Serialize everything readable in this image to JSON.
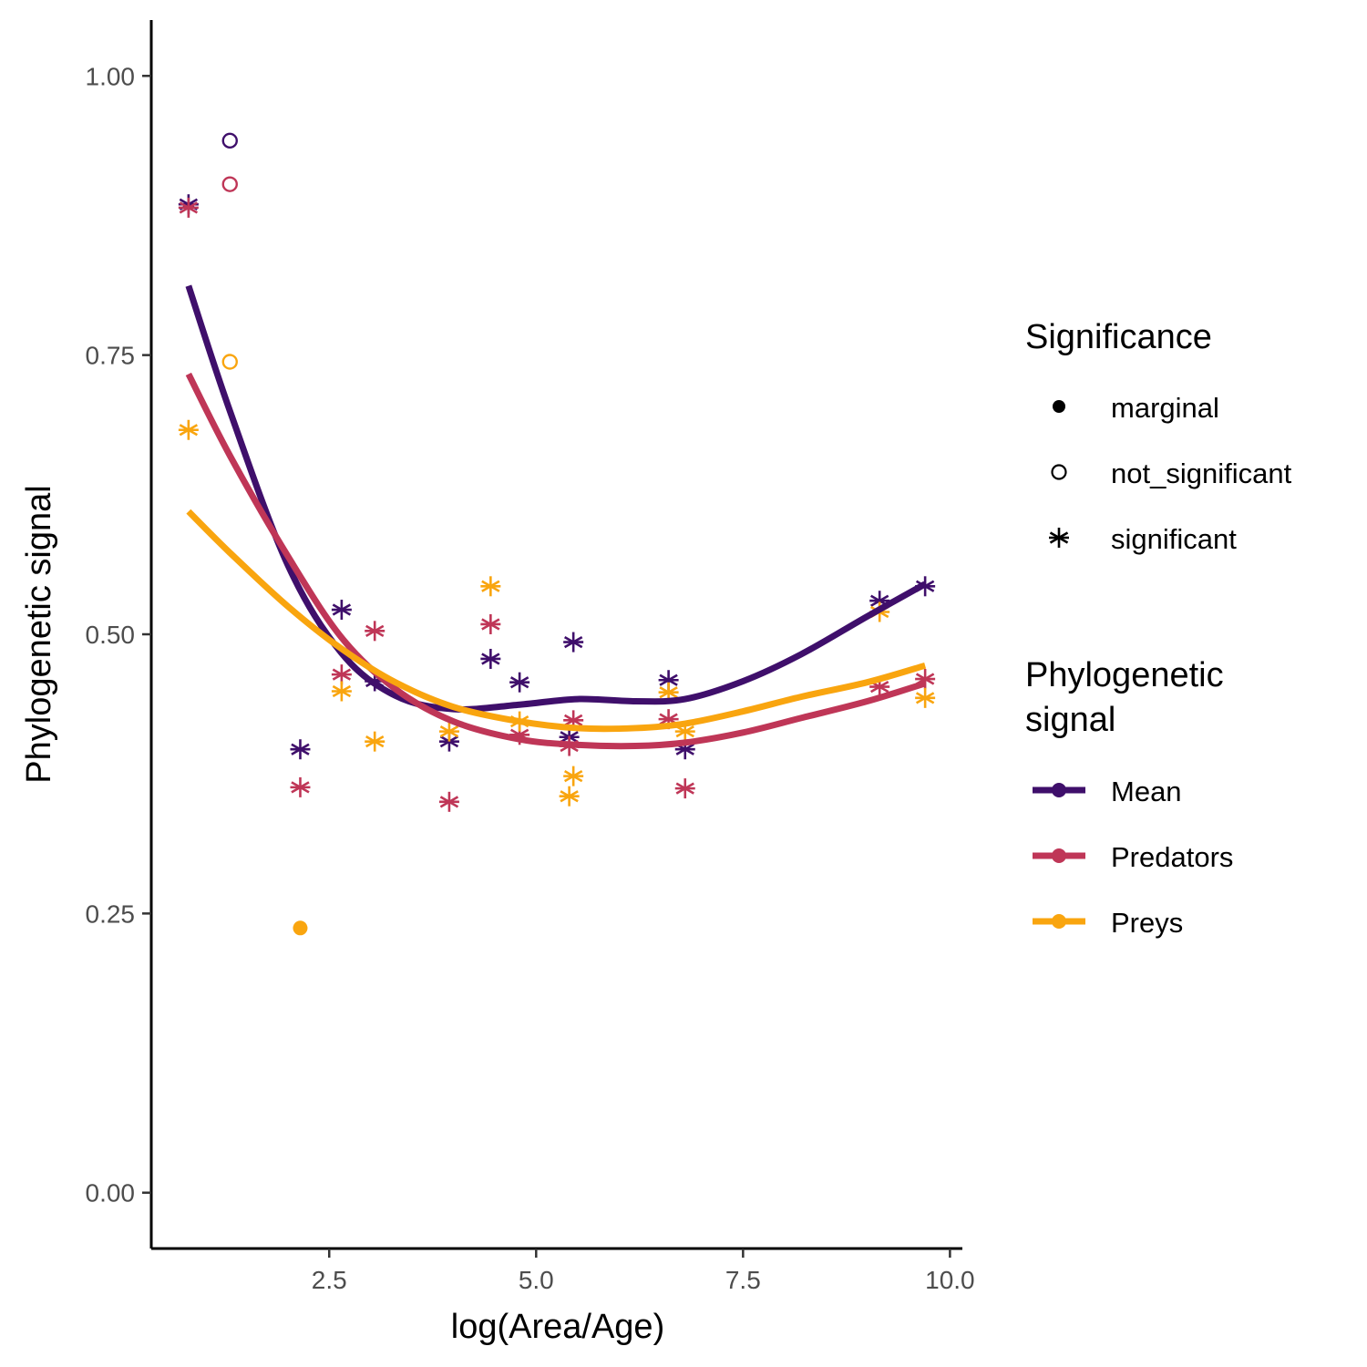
{
  "chart_data": {
    "type": "scatter",
    "xlabel": "log(Area/Age)",
    "ylabel": "Phylogenetic signal",
    "xlim": [
      0.35,
      10.15
    ],
    "ylim": [
      -0.05,
      1.05
    ],
    "x_ticks": [
      2.5,
      5.0,
      7.5,
      10.0
    ],
    "x_tick_labels": [
      "2.5",
      "5.0",
      "7.5",
      "10.0"
    ],
    "y_ticks": [
      0.0,
      0.25,
      0.5,
      0.75,
      1.0
    ],
    "y_tick_labels": [
      "0.00",
      "0.25",
      "0.50",
      "0.75",
      "1.00"
    ],
    "grid": false,
    "legend_placement": "right",
    "legends": [
      {
        "title": "Significance",
        "entries": [
          {
            "label": "marginal",
            "shape": "filled-circle"
          },
          {
            "label": "not_significant",
            "shape": "open-circle"
          },
          {
            "label": "significant",
            "shape": "asterisk"
          }
        ]
      },
      {
        "title": "Phylogenetic signal",
        "entries": [
          {
            "label": "Mean",
            "color": "#3f0f6b"
          },
          {
            "label": "Predators",
            "color": "#bf3657"
          },
          {
            "label": "Preys",
            "color": "#f9a50f"
          }
        ]
      }
    ],
    "series": [
      {
        "name": "Mean",
        "color": "#3f0f6b",
        "points": [
          {
            "x": 0.8,
            "y": 0.885,
            "sig": "significant"
          },
          {
            "x": 1.3,
            "y": 0.942,
            "sig": "not_significant"
          },
          {
            "x": 2.15,
            "y": 0.397,
            "sig": "significant"
          },
          {
            "x": 2.65,
            "y": 0.522,
            "sig": "significant"
          },
          {
            "x": 3.05,
            "y": 0.458,
            "sig": "significant"
          },
          {
            "x": 3.95,
            "y": 0.404,
            "sig": "significant"
          },
          {
            "x": 4.45,
            "y": 0.478,
            "sig": "significant"
          },
          {
            "x": 4.8,
            "y": 0.457,
            "sig": "significant"
          },
          {
            "x": 5.4,
            "y": 0.408,
            "sig": "significant"
          },
          {
            "x": 5.45,
            "y": 0.493,
            "sig": "significant"
          },
          {
            "x": 6.6,
            "y": 0.459,
            "sig": "significant"
          },
          {
            "x": 6.8,
            "y": 0.397,
            "sig": "significant"
          },
          {
            "x": 9.15,
            "y": 0.53,
            "sig": "significant"
          },
          {
            "x": 9.7,
            "y": 0.543,
            "sig": "significant"
          }
        ],
        "smooth": {
          "x": [
            0.8,
            1.3,
            2.0,
            2.65,
            3.3,
            4.0,
            4.8,
            5.5,
            6.2,
            6.8,
            7.5,
            8.2,
            9.0,
            9.7
          ],
          "y": [
            0.812,
            0.7,
            0.562,
            0.483,
            0.445,
            0.433,
            0.437,
            0.442,
            0.44,
            0.442,
            0.458,
            0.482,
            0.516,
            0.545
          ]
        }
      },
      {
        "name": "Predators",
        "color": "#bf3657",
        "points": [
          {
            "x": 0.8,
            "y": 0.882,
            "sig": "significant"
          },
          {
            "x": 1.3,
            "y": 0.903,
            "sig": "not_significant"
          },
          {
            "x": 2.15,
            "y": 0.363,
            "sig": "significant"
          },
          {
            "x": 2.65,
            "y": 0.464,
            "sig": "significant"
          },
          {
            "x": 3.05,
            "y": 0.503,
            "sig": "significant"
          },
          {
            "x": 3.95,
            "y": 0.35,
            "sig": "significant"
          },
          {
            "x": 4.45,
            "y": 0.509,
            "sig": "significant"
          },
          {
            "x": 4.8,
            "y": 0.41,
            "sig": "significant"
          },
          {
            "x": 5.4,
            "y": 0.4,
            "sig": "significant"
          },
          {
            "x": 5.45,
            "y": 0.423,
            "sig": "significant"
          },
          {
            "x": 6.6,
            "y": 0.424,
            "sig": "significant"
          },
          {
            "x": 6.8,
            "y": 0.362,
            "sig": "significant"
          },
          {
            "x": 9.15,
            "y": 0.453,
            "sig": "significant"
          },
          {
            "x": 9.7,
            "y": 0.46,
            "sig": "significant"
          }
        ],
        "smooth": {
          "x": [
            0.8,
            1.3,
            2.0,
            2.65,
            3.3,
            4.0,
            4.8,
            5.5,
            6.2,
            6.8,
            7.5,
            8.2,
            9.0,
            9.7
          ],
          "y": [
            0.733,
            0.66,
            0.57,
            0.497,
            0.451,
            0.422,
            0.406,
            0.401,
            0.4,
            0.403,
            0.412,
            0.425,
            0.44,
            0.456
          ]
        }
      },
      {
        "name": "Preys",
        "color": "#f9a50f",
        "points": [
          {
            "x": 0.8,
            "y": 0.683,
            "sig": "significant"
          },
          {
            "x": 1.3,
            "y": 0.744,
            "sig": "not_significant"
          },
          {
            "x": 2.15,
            "y": 0.237,
            "sig": "marginal"
          },
          {
            "x": 2.65,
            "y": 0.449,
            "sig": "significant"
          },
          {
            "x": 3.05,
            "y": 0.404,
            "sig": "significant"
          },
          {
            "x": 3.95,
            "y": 0.413,
            "sig": "significant"
          },
          {
            "x": 4.45,
            "y": 0.543,
            "sig": "significant"
          },
          {
            "x": 4.8,
            "y": 0.422,
            "sig": "significant"
          },
          {
            "x": 5.4,
            "y": 0.355,
            "sig": "significant"
          },
          {
            "x": 5.45,
            "y": 0.373,
            "sig": "significant"
          },
          {
            "x": 6.6,
            "y": 0.448,
            "sig": "significant"
          },
          {
            "x": 6.8,
            "y": 0.413,
            "sig": "significant"
          },
          {
            "x": 9.15,
            "y": 0.52,
            "sig": "significant"
          },
          {
            "x": 9.7,
            "y": 0.443,
            "sig": "significant"
          }
        ],
        "smooth": {
          "x": [
            0.8,
            1.3,
            2.0,
            2.65,
            3.3,
            4.0,
            4.8,
            5.5,
            6.2,
            6.8,
            7.5,
            8.2,
            9.0,
            9.7
          ],
          "y": [
            0.61,
            0.573,
            0.525,
            0.487,
            0.457,
            0.435,
            0.422,
            0.416,
            0.416,
            0.42,
            0.431,
            0.444,
            0.457,
            0.472
          ]
        }
      }
    ]
  }
}
